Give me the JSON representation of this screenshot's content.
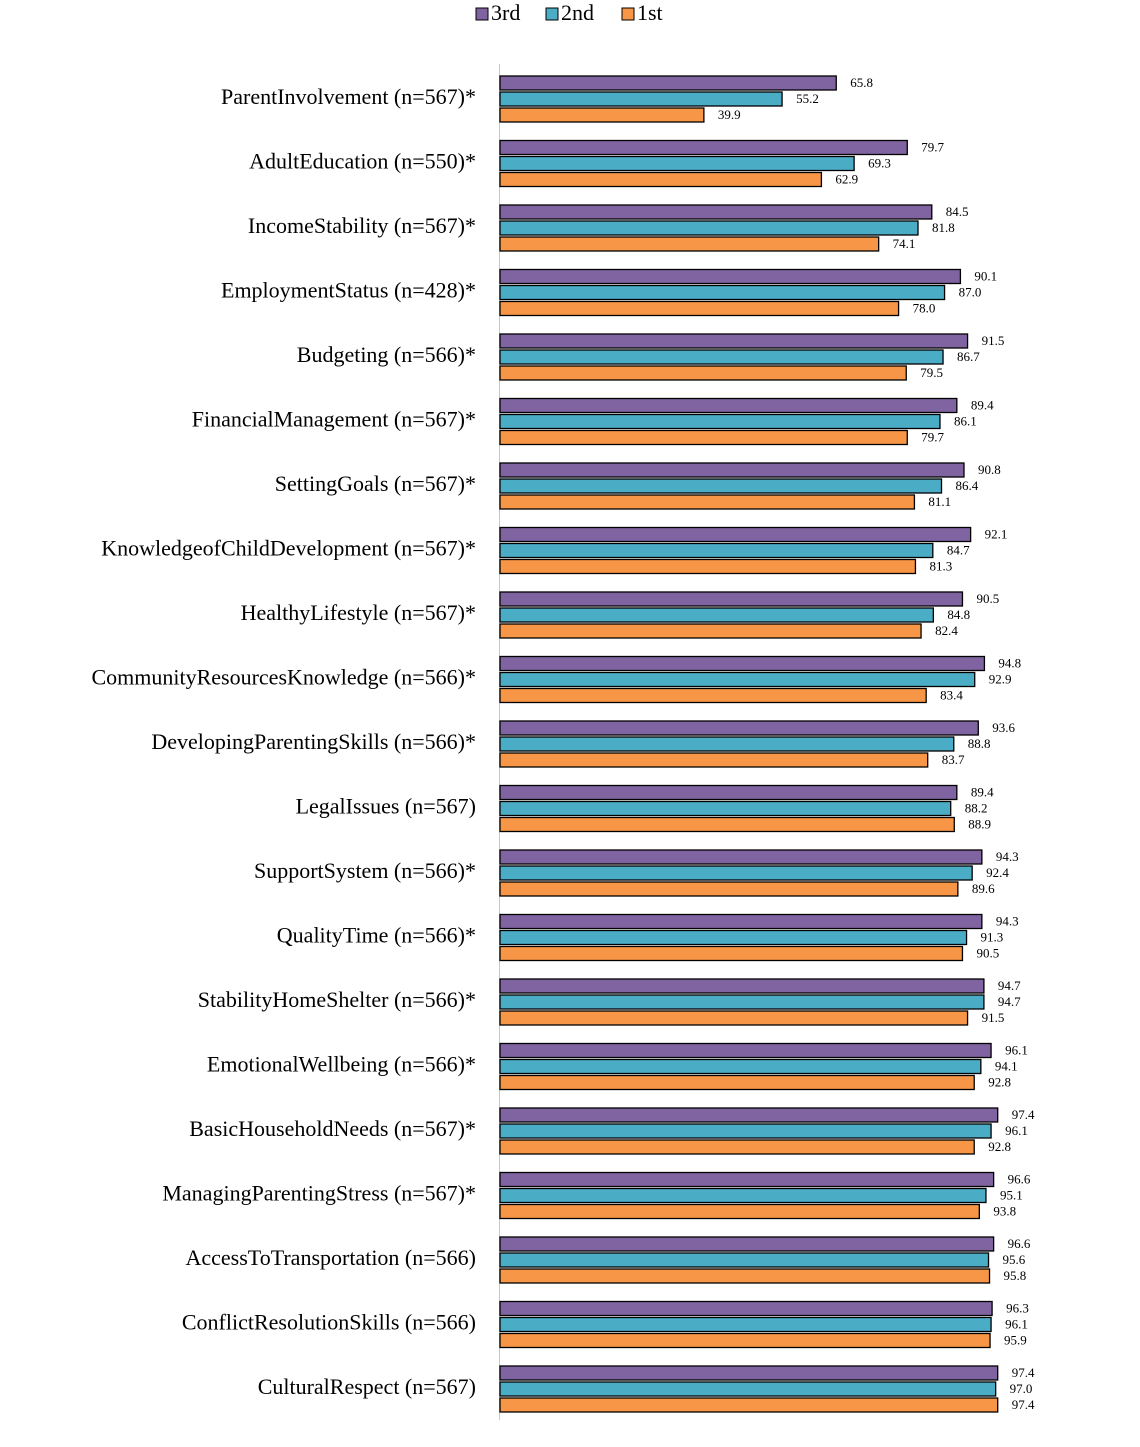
{
  "chart_data": {
    "type": "bar",
    "orientation": "horizontal",
    "categories": [
      "ParentInvolvement (n=567)*",
      "AdultEducation (n=550)*",
      "IncomeStability (n=567)*",
      "EmploymentStatus (n=428)*",
      "Budgeting (n=566)*",
      "FinancialManagement (n=567)*",
      "SettingGoals (n=567)*",
      "KnowledgeofChildDevelopment (n=567)*",
      "HealthyLifestyle (n=567)*",
      "CommunityResourcesKnowledge (n=566)*",
      "DevelopingParentingSkills (n=566)*",
      "LegalIssues (n=567)",
      "SupportSystem (n=566)*",
      "QualityTime (n=566)*",
      "StabilityHomeShelter (n=566)*",
      "EmotionalWellbeing (n=566)*",
      "BasicHouseholdNeeds (n=567)*",
      "ManagingParentingStress (n=567)*",
      "AccessToTransportation (n=566)",
      "ConflictResolutionSkills (n=566)",
      "CulturalRespect (n=567)"
    ],
    "series": [
      {
        "name": "3rd",
        "color": "#8064a2",
        "values": [
          65.8,
          79.7,
          84.5,
          90.1,
          91.5,
          89.4,
          90.8,
          92.1,
          90.5,
          94.8,
          93.6,
          89.4,
          94.3,
          94.3,
          94.7,
          96.1,
          97.4,
          96.6,
          96.6,
          96.3,
          97.4
        ],
        "value_labels": [
          "65.8",
          "79.7",
          "84.5",
          "90.1",
          "91.5",
          "89.4",
          "90.8",
          "92.1",
          "90.5",
          "94.8",
          "93.6",
          "89.4",
          "94.3",
          "94.3",
          "94.7",
          "96.1",
          "97.4",
          "96.6",
          "96.6",
          "96.3",
          "97.4"
        ]
      },
      {
        "name": "2nd",
        "color": "#4bacc6",
        "values": [
          55.2,
          69.3,
          81.8,
          87.0,
          86.7,
          86.1,
          86.4,
          84.7,
          84.8,
          92.9,
          88.8,
          88.2,
          92.4,
          91.3,
          94.7,
          94.1,
          96.1,
          95.1,
          95.6,
          96.1,
          97.0
        ],
        "value_labels": [
          "55.2",
          "69.3",
          "81.8",
          "87.0",
          "86.7",
          "86.1",
          "86.4",
          "84.7",
          "84.8",
          "92.9",
          "88.8",
          "88.2",
          "92.4",
          "91.3",
          "94.7",
          "94.1",
          "96.1",
          "95.1",
          "95.6",
          "96.1",
          "97.0"
        ]
      },
      {
        "name": "1st",
        "color": "#f79646",
        "values": [
          39.9,
          62.9,
          74.1,
          78.0,
          79.5,
          79.7,
          81.1,
          81.3,
          82.4,
          83.4,
          83.7,
          88.9,
          89.6,
          90.5,
          91.5,
          92.8,
          92.8,
          93.8,
          95.8,
          95.9,
          97.4
        ],
        "value_labels": [
          "39.9",
          "62.9",
          "74.1",
          "78.0",
          "79.5",
          "79.7",
          "81.1",
          "81.3",
          "82.4",
          "83.4",
          "83.7",
          "88.9",
          "89.6",
          "90.5",
          "91.5",
          "92.8",
          "92.8",
          "93.8",
          "95.8",
          "95.9",
          "97.4"
        ]
      }
    ],
    "xlim": [
      0,
      100
    ],
    "legend": "top"
  }
}
